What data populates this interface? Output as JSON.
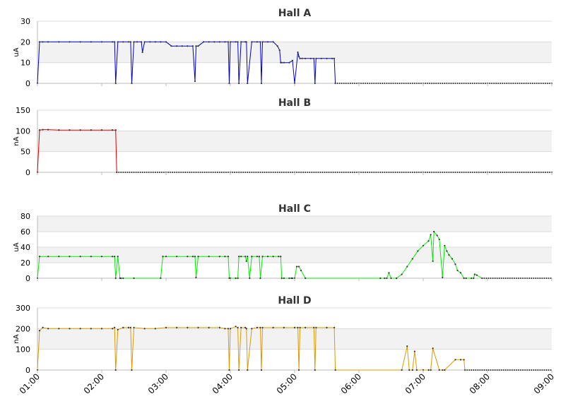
{
  "chart_data": [
    {
      "type": "line",
      "title": "Hall A",
      "ylabel": "uA",
      "ylim": [
        0,
        30
      ],
      "yticks": [
        0,
        10,
        20,
        30
      ],
      "xlim": [
        "01:00",
        "09:00"
      ],
      "color": "#0000cc",
      "grid": true,
      "series": [
        {
          "x": [
            "01:00",
            "01:02",
            "01:05",
            "01:10",
            "01:20",
            "01:30",
            "01:40",
            "01:50",
            "02:00",
            "02:10",
            "02:12",
            "02:13",
            "02:15",
            "02:20",
            "02:25",
            "02:27",
            "02:28",
            "02:30",
            "02:33",
            "02:37",
            "02:38",
            "02:40",
            "02:45",
            "02:50",
            "02:55",
            "03:00",
            "03:05",
            "03:10",
            "03:15",
            "03:20",
            "03:25",
            "03:27",
            "03:28",
            "03:30",
            "03:35",
            "03:40",
            "03:45",
            "03:50",
            "03:55",
            "03:58",
            "03:59",
            "04:00",
            "04:05",
            "04:07",
            "04:08",
            "04:10",
            "04:14",
            "04:15",
            "04:16",
            "04:20",
            "04:25",
            "04:28",
            "04:29",
            "04:30",
            "04:35",
            "04:40",
            "04:44",
            "04:46",
            "04:47",
            "04:48",
            "04:50",
            "04:55",
            "04:58",
            "05:00",
            "05:03",
            "05:04",
            "05:05",
            "05:07",
            "05:10",
            "05:15",
            "05:18",
            "05:19",
            "05:20",
            "05:25",
            "05:30",
            "05:35",
            "05:37",
            "05:38"
          ],
          "y": [
            0,
            20,
            20,
            20,
            20,
            20,
            20,
            20,
            20,
            20,
            20,
            0,
            20,
            20,
            20,
            20,
            0,
            20,
            20,
            20,
            15,
            20,
            20,
            20,
            20,
            20,
            18,
            18,
            18,
            18,
            18,
            1,
            18,
            18,
            20,
            20,
            20,
            20,
            20,
            20,
            0,
            20,
            20,
            20,
            0,
            20,
            20,
            20,
            0,
            20,
            20,
            20,
            0,
            20,
            20,
            20,
            18,
            16,
            10,
            10,
            10,
            10,
            11,
            0,
            15,
            13,
            12,
            12,
            12,
            12,
            12,
            0,
            12,
            12,
            12,
            12,
            12,
            0
          ]
        }
      ]
    },
    {
      "type": "line",
      "title": "Hall B",
      "ylabel": "nA",
      "ylim": [
        0,
        150
      ],
      "yticks": [
        0,
        50,
        100,
        150
      ],
      "xlim": [
        "01:00",
        "09:00"
      ],
      "color": "#dd0000",
      "grid": true,
      "series": [
        {
          "x": [
            "01:00",
            "01:02",
            "01:05",
            "01:10",
            "01:20",
            "01:30",
            "01:40",
            "01:50",
            "02:00",
            "02:10",
            "02:13",
            "02:14"
          ],
          "y": [
            0,
            102,
            103,
            103,
            102,
            102,
            102,
            102,
            102,
            102,
            102,
            0
          ]
        }
      ]
    },
    {
      "type": "line",
      "title": "Hall C",
      "ylabel": "uA",
      "ylim": [
        0,
        80
      ],
      "yticks": [
        0,
        20,
        40,
        60,
        80
      ],
      "xlim": [
        "01:00",
        "09:00"
      ],
      "color": "#00ee00",
      "grid": true,
      "series": [
        {
          "x": [
            "01:00",
            "01:02",
            "01:10",
            "01:20",
            "01:30",
            "01:40",
            "01:50",
            "02:00",
            "02:10",
            "02:12",
            "02:13",
            "02:15",
            "02:17",
            "02:18",
            "02:20",
            "02:30",
            "02:55",
            "02:57",
            "03:00",
            "03:10",
            "03:20",
            "03:25",
            "03:27",
            "03:28",
            "03:30",
            "03:40",
            "03:50",
            "03:55",
            "03:58",
            "03:59",
            "04:00",
            "04:05",
            "04:07",
            "04:08",
            "04:10",
            "04:14",
            "04:15",
            "04:16",
            "04:18",
            "04:20",
            "04:25",
            "04:27",
            "04:28",
            "04:30",
            "04:35",
            "04:40",
            "04:45",
            "04:47",
            "04:48",
            "04:50",
            "04:55",
            "04:57",
            "04:58",
            "05:00",
            "05:02",
            "05:04",
            "05:06",
            "05:10",
            "06:20",
            "06:24",
            "06:26",
            "06:28",
            "06:30",
            "06:35",
            "06:40",
            "06:45",
            "06:50",
            "06:55",
            "07:00",
            "07:05",
            "07:07",
            "07:09",
            "07:10",
            "07:13",
            "07:15",
            "07:18",
            "07:20",
            "07:22",
            "07:24",
            "07:27",
            "07:30",
            "07:32",
            "07:35",
            "07:38",
            "07:40",
            "07:45",
            "07:47",
            "07:48",
            "07:50",
            "07:55"
          ],
          "y": [
            0,
            28,
            28,
            28,
            28,
            28,
            28,
            28,
            28,
            28,
            0,
            28,
            0,
            0,
            0,
            0,
            0,
            28,
            28,
            28,
            28,
            28,
            28,
            1,
            28,
            28,
            28,
            28,
            28,
            0,
            0,
            0,
            0,
            28,
            28,
            28,
            22,
            28,
            0,
            28,
            28,
            28,
            0,
            28,
            28,
            28,
            28,
            28,
            0,
            0,
            0,
            0,
            0,
            0,
            15,
            15,
            10,
            0,
            0,
            0,
            0,
            7,
            0,
            0,
            5,
            15,
            25,
            35,
            42,
            48,
            56,
            22,
            60,
            55,
            50,
            1,
            42,
            35,
            30,
            25,
            18,
            10,
            7,
            0,
            0,
            0,
            0,
            5,
            4,
            0
          ]
        }
      ]
    },
    {
      "type": "line",
      "title": "Hall D",
      "ylabel": "nA",
      "ylim": [
        0,
        300
      ],
      "yticks": [
        0,
        100,
        200,
        300
      ],
      "xlim": [
        "01:00",
        "09:00"
      ],
      "color": "#dd9900",
      "grid": true,
      "series": [
        {
          "x": [
            "01:00",
            "01:02",
            "01:05",
            "01:10",
            "01:20",
            "01:30",
            "01:40",
            "01:50",
            "02:00",
            "02:10",
            "02:12",
            "02:13",
            "02:15",
            "02:20",
            "02:25",
            "02:27",
            "02:28",
            "02:30",
            "02:40",
            "02:50",
            "03:00",
            "03:10",
            "03:20",
            "03:30",
            "03:40",
            "03:50",
            "03:55",
            "03:58",
            "03:59",
            "04:00",
            "04:05",
            "04:07",
            "04:08",
            "04:10",
            "04:14",
            "04:15",
            "04:16",
            "04:20",
            "04:25",
            "04:28",
            "04:29",
            "04:30",
            "04:40",
            "04:50",
            "05:00",
            "05:03",
            "05:04",
            "05:05",
            "05:10",
            "05:18",
            "05:19",
            "05:20",
            "05:30",
            "05:37",
            "05:38",
            "06:40",
            "06:45",
            "06:47",
            "06:50",
            "06:52",
            "06:54",
            "07:00",
            "07:05",
            "07:07",
            "07:09",
            "07:15",
            "07:18",
            "07:20",
            "07:30",
            "07:35",
            "07:38",
            "07:39"
          ],
          "y": [
            0,
            190,
            205,
            200,
            200,
            200,
            200,
            200,
            200,
            200,
            205,
            0,
            195,
            205,
            205,
            205,
            0,
            205,
            200,
            200,
            205,
            205,
            205,
            205,
            205,
            205,
            200,
            200,
            0,
            200,
            210,
            205,
            0,
            205,
            205,
            200,
            0,
            200,
            205,
            205,
            0,
            205,
            205,
            205,
            205,
            205,
            0,
            205,
            205,
            205,
            0,
            205,
            205,
            205,
            0,
            0,
            115,
            0,
            0,
            90,
            0,
            0,
            0,
            0,
            105,
            0,
            0,
            0,
            50,
            50,
            50,
            0
          ]
        }
      ]
    }
  ],
  "xaxis": {
    "ticks": [
      "01:00",
      "02:00",
      "03:00",
      "04:00",
      "05:00",
      "06:00",
      "07:00",
      "08:00",
      "09:00"
    ]
  }
}
